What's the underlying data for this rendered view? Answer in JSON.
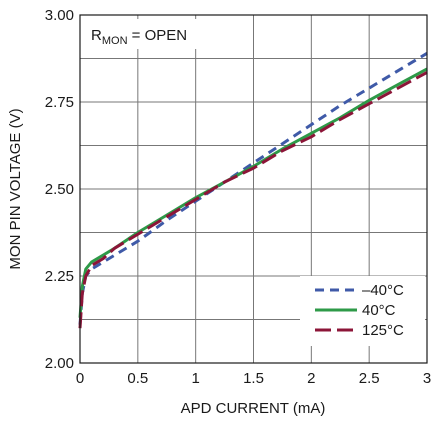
{
  "chart_data": {
    "type": "line",
    "title": "",
    "xlabel": "APD CURRENT (mA)",
    "ylabel": "MON PIN VOLTAGE (V)",
    "xlim": [
      0,
      3
    ],
    "ylim": [
      2.0,
      3.0
    ],
    "x_ticks": [
      "0",
      "0.5",
      "1",
      "1.5",
      "2",
      "2.5",
      "3"
    ],
    "y_ticks": [
      "2.00",
      "2.25",
      "2.50",
      "2.75",
      "3.00"
    ],
    "grid": true,
    "legend_position": "bottom-right",
    "annotation": {
      "main": "R",
      "sub": "MON",
      "rest": " = OPEN"
    },
    "series": [
      {
        "name": "–40°C",
        "color": "#3f5aa8",
        "dash": "dashed",
        "x": [
          0,
          0.02,
          0.05,
          0.1,
          0.2,
          0.3,
          0.5,
          0.75,
          1.0,
          1.25,
          1.5,
          1.75,
          2.0,
          2.25,
          2.5,
          2.75,
          3.0
        ],
        "y": [
          2.11,
          2.2,
          2.25,
          2.27,
          2.29,
          2.31,
          2.35,
          2.41,
          2.465,
          2.52,
          2.575,
          2.63,
          2.685,
          2.74,
          2.79,
          2.84,
          2.89
        ]
      },
      {
        "name": "40°C",
        "color": "#2e9a48",
        "dash": "solid",
        "x": [
          0,
          0.02,
          0.05,
          0.1,
          0.2,
          0.3,
          0.5,
          0.75,
          1.0,
          1.25,
          1.5,
          1.75,
          2.0,
          2.25,
          2.5,
          2.75,
          3.0
        ],
        "y": [
          2.13,
          2.22,
          2.27,
          2.29,
          2.31,
          2.33,
          2.375,
          2.425,
          2.475,
          2.52,
          2.565,
          2.615,
          2.66,
          2.705,
          2.755,
          2.8,
          2.845
        ]
      },
      {
        "name": "125°C",
        "color": "#8c1538",
        "dash": "longdash",
        "x": [
          0,
          0.02,
          0.05,
          0.1,
          0.2,
          0.3,
          0.5,
          0.75,
          1.0,
          1.25,
          1.5,
          1.75,
          2.0,
          2.25,
          2.5,
          2.75,
          3.0
        ],
        "y": [
          2.1,
          2.2,
          2.25,
          2.28,
          2.3,
          2.33,
          2.37,
          2.42,
          2.47,
          2.52,
          2.56,
          2.61,
          2.65,
          2.7,
          2.745,
          2.79,
          2.835
        ]
      }
    ]
  }
}
